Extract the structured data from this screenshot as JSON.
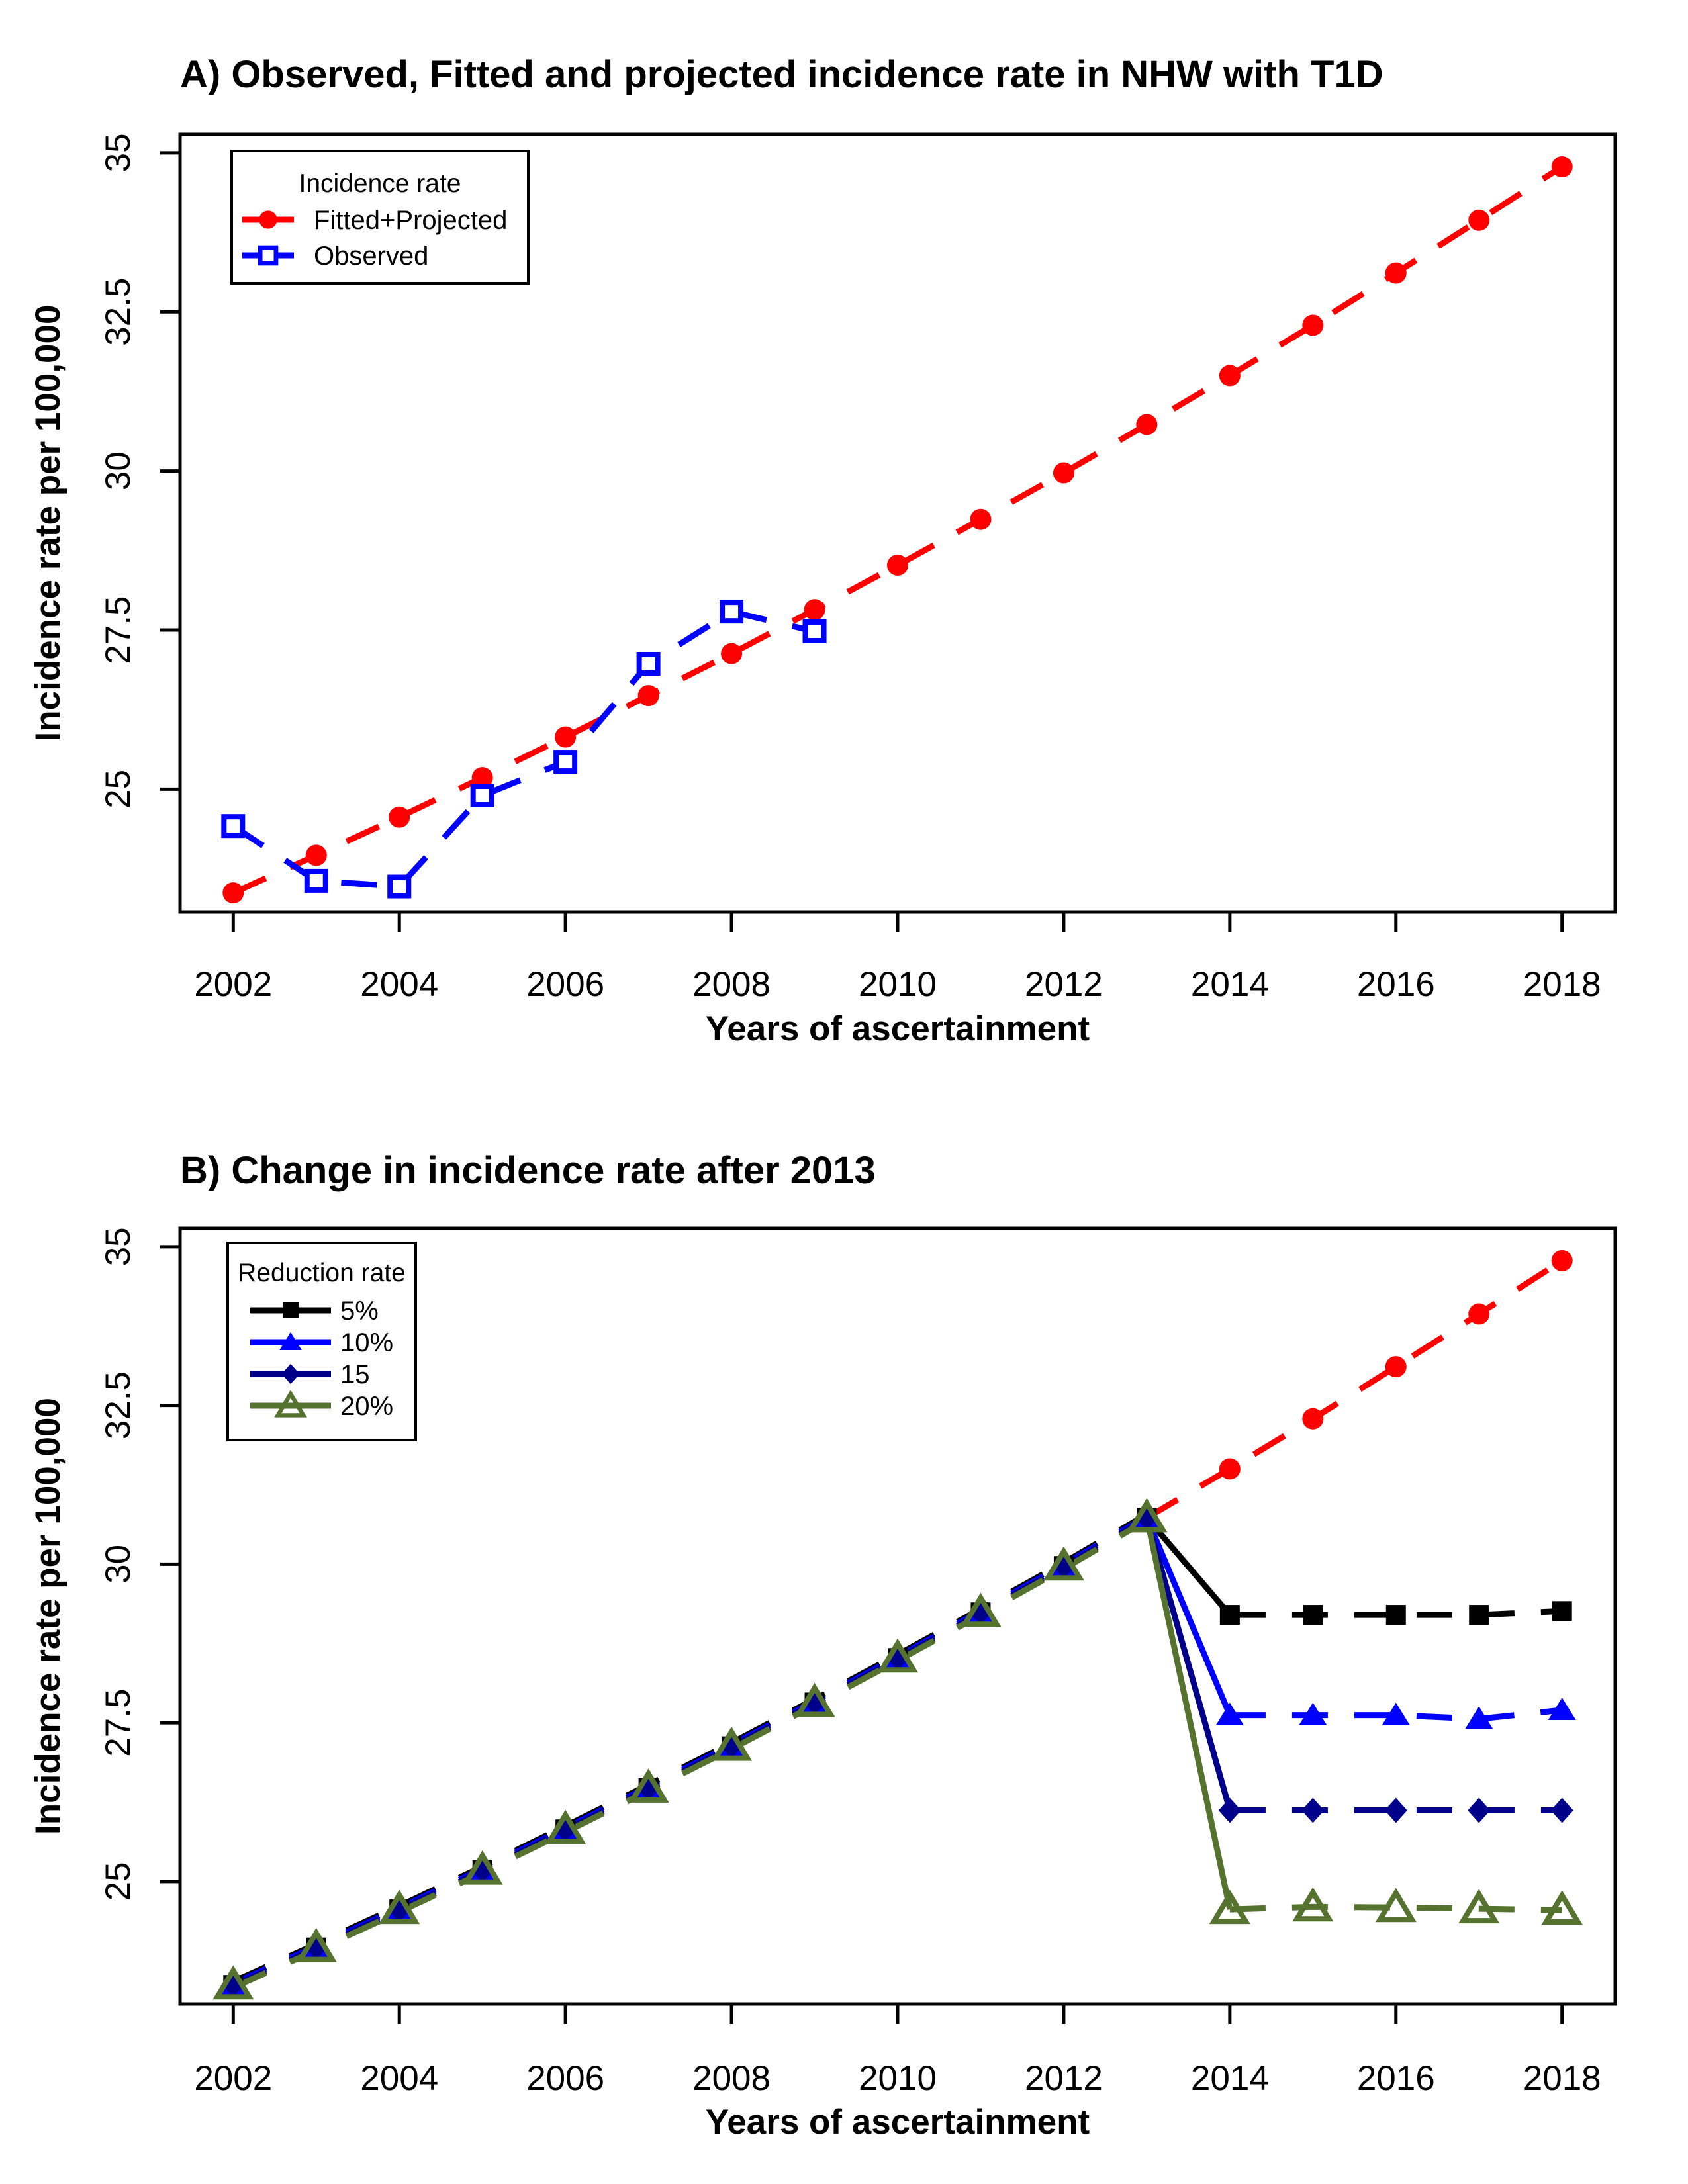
{
  "figure": {
    "background": "#FFFFFF",
    "frame_color": "#000000"
  },
  "chart_data": [
    {
      "id": "panel-a",
      "type": "line",
      "title": "A) Observed, Fitted and projected incidence rate in NHW with T1D",
      "xlabel": "Years of ascertainment",
      "ylabel": "Incidence rate per 100,000",
      "xlim": [
        2001.36,
        2018.64
      ],
      "ylim": [
        23.07,
        35.29
      ],
      "xticks": [
        2002,
        2004,
        2006,
        2008,
        2010,
        2012,
        2014,
        2016,
        2018
      ],
      "yticks": [
        25,
        27.5,
        30,
        32.5,
        35
      ],
      "ytick_labels": [
        "25",
        "27.5",
        "30",
        "32.5",
        "35"
      ],
      "grid": false,
      "legend": {
        "title": "Incidence rate",
        "position": "top-left",
        "items": [
          {
            "label": "Fitted+Projected",
            "color": "#FF0000",
            "marker": "circle-filled"
          },
          {
            "label": "Observed",
            "color": "#0000FF",
            "marker": "square-open"
          }
        ]
      },
      "series": [
        {
          "name": "Fitted+Projected",
          "color": "#FF0000",
          "marker": "circle-filled",
          "dashed": true,
          "x": [
            2002,
            2003,
            2004,
            2005,
            2006,
            2007,
            2008,
            2009,
            2010,
            2011,
            2012,
            2013,
            2014,
            2015,
            2016,
            2017,
            2018
          ],
          "y": [
            23.37,
            23.96,
            24.56,
            25.18,
            25.82,
            26.47,
            27.13,
            27.82,
            28.52,
            29.24,
            29.97,
            30.73,
            31.5,
            32.29,
            33.11,
            33.94,
            34.78
          ]
        },
        {
          "name": "Observed",
          "color": "#0000FF",
          "marker": "square-open",
          "dashed": true,
          "x": [
            2002,
            2003,
            2004,
            2005,
            2006,
            2007,
            2008,
            2009
          ],
          "y": [
            24.42,
            23.56,
            23.47,
            24.9,
            25.43,
            26.97,
            27.79,
            27.48
          ]
        }
      ]
    },
    {
      "id": "panel-b",
      "type": "line",
      "title": "B) Change in incidence rate after 2013",
      "xlabel": "Years of ascertainment",
      "ylabel": "Incidence rate per 100,000",
      "xlim": [
        2001.36,
        2018.64
      ],
      "ylim": [
        23.07,
        35.29
      ],
      "xticks": [
        2002,
        2004,
        2006,
        2008,
        2010,
        2012,
        2014,
        2016,
        2018
      ],
      "yticks": [
        25,
        27.5,
        30,
        32.5,
        35
      ],
      "ytick_labels": [
        "25",
        "27.5",
        "30",
        "32.5",
        "35"
      ],
      "grid": false,
      "split_year": 2013,
      "legend": {
        "title": "Reduction rate",
        "position": "top-left",
        "items": [
          {
            "label": "5%",
            "color": "#000000",
            "marker": "square-filled"
          },
          {
            "label": "10%",
            "color": "#0000FF",
            "marker": "triangle-filled"
          },
          {
            "label": "15",
            "color": "#00008B",
            "marker": "diamond-filled"
          },
          {
            "label": "20%",
            "color": "#56722F",
            "marker": "triangle-open"
          }
        ]
      },
      "series": [
        {
          "name": "Fitted+Projected",
          "color": "#FF0000",
          "marker": "circle-filled",
          "dashed": true,
          "x": [
            2002,
            2003,
            2004,
            2005,
            2006,
            2007,
            2008,
            2009,
            2010,
            2011,
            2012,
            2013,
            2014,
            2015,
            2016,
            2017,
            2018
          ],
          "y": [
            23.37,
            23.96,
            24.56,
            25.18,
            25.82,
            26.47,
            27.13,
            27.82,
            28.52,
            29.24,
            29.97,
            30.73,
            31.5,
            32.29,
            33.11,
            33.94,
            34.78
          ]
        },
        {
          "name": "5%",
          "color": "#000000",
          "marker": "square-filled",
          "dashed": true,
          "x": [
            2002,
            2003,
            2004,
            2005,
            2006,
            2007,
            2008,
            2009,
            2010,
            2011,
            2012,
            2013,
            2014,
            2015,
            2016,
            2017,
            2018
          ],
          "y": [
            23.37,
            23.96,
            24.56,
            25.18,
            25.82,
            26.47,
            27.13,
            27.82,
            28.52,
            29.24,
            29.97,
            30.73,
            29.2,
            29.2,
            29.2,
            29.2,
            29.26
          ]
        },
        {
          "name": "10%",
          "color": "#0000FF",
          "marker": "triangle-filled",
          "dashed": true,
          "x": [
            2002,
            2003,
            2004,
            2005,
            2006,
            2007,
            2008,
            2009,
            2010,
            2011,
            2012,
            2013,
            2014,
            2015,
            2016,
            2017,
            2018
          ],
          "y": [
            23.37,
            23.96,
            24.56,
            25.18,
            25.82,
            26.47,
            27.13,
            27.82,
            28.52,
            29.24,
            29.97,
            30.73,
            27.62,
            27.62,
            27.62,
            27.56,
            27.7
          ]
        },
        {
          "name": "15",
          "color": "#00008B",
          "marker": "diamond-filled",
          "dashed": true,
          "x": [
            2002,
            2003,
            2004,
            2005,
            2006,
            2007,
            2008,
            2009,
            2010,
            2011,
            2012,
            2013,
            2014,
            2015,
            2016,
            2017,
            2018
          ],
          "y": [
            23.37,
            23.96,
            24.56,
            25.18,
            25.82,
            26.47,
            27.13,
            27.82,
            28.52,
            29.24,
            29.97,
            30.73,
            26.12,
            26.12,
            26.12,
            26.12,
            26.12
          ]
        },
        {
          "name": "20%",
          "color": "#56722F",
          "marker": "triangle-open",
          "dashed": true,
          "x": [
            2002,
            2003,
            2004,
            2005,
            2006,
            2007,
            2008,
            2009,
            2010,
            2011,
            2012,
            2013,
            2014,
            2015,
            2016,
            2017,
            2018
          ],
          "y": [
            23.37,
            23.96,
            24.56,
            25.18,
            25.82,
            26.47,
            27.13,
            27.82,
            28.52,
            29.24,
            29.97,
            30.73,
            24.56,
            24.6,
            24.59,
            24.57,
            24.55
          ]
        }
      ]
    }
  ]
}
